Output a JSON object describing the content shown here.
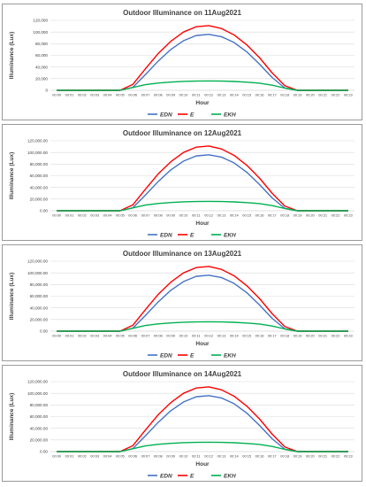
{
  "colors": {
    "EDN": "#4472c4",
    "E": "#ff0000",
    "EKH": "#00b050",
    "grid": "#d9d9d9",
    "axis": "#bfbfbf"
  },
  "x_tick_labels": [
    "00:00",
    "00:01",
    "00:02",
    "00:03",
    "00:04",
    "00:05",
    "00:06",
    "00:07",
    "00:08",
    "00:09",
    "00:10",
    "00:11",
    "00:12",
    "00:13",
    "00:14",
    "00:15",
    "00:16",
    "00:17",
    "00:18",
    "00:19",
    "00:20",
    "00:21",
    "00:22",
    "00:23"
  ],
  "chart_data": [
    {
      "type": "line",
      "title": "Outdoor Illuminance on 11Aug2021",
      "xlabel": "Hour",
      "ylabel": "Illuminance (Lux)",
      "ylim": [
        0,
        120000
      ],
      "y_ticks": [
        "0",
        "20,000",
        "40,000",
        "60,000",
        "80,000",
        "100,000",
        "120,000"
      ],
      "grid": true,
      "legend": "bottom",
      "categories": [
        "00:00",
        "00:01",
        "00:02",
        "00:03",
        "00:04",
        "00:05",
        "00:06",
        "00:07",
        "00:08",
        "00:09",
        "00:10",
        "00:11",
        "00:12",
        "00:13",
        "00:14",
        "00:15",
        "00:16",
        "00:17",
        "00:18",
        "00:19",
        "00:20",
        "00:21",
        "00:22",
        "00:23"
      ],
      "series": [
        {
          "name": "EDN",
          "values": [
            0,
            0,
            0,
            0,
            0,
            0,
            5000,
            27000,
            50000,
            70000,
            85000,
            94000,
            96000,
            92000,
            82000,
            66000,
            45000,
            22000,
            4000,
            0,
            0,
            0,
            0,
            0
          ]
        },
        {
          "name": "E",
          "values": [
            0,
            0,
            0,
            0,
            0,
            0,
            10000,
            37000,
            63000,
            84000,
            100000,
            109000,
            111000,
            106000,
            95000,
            78000,
            56000,
            30000,
            8000,
            0,
            0,
            0,
            0,
            0
          ]
        },
        {
          "name": "EKH",
          "values": [
            0,
            0,
            0,
            0,
            0,
            0,
            4800,
            9700,
            12500,
            14200,
            15300,
            15800,
            16000,
            15800,
            15200,
            14000,
            12200,
            8800,
            3800,
            0,
            0,
            0,
            0,
            0
          ]
        }
      ]
    },
    {
      "type": "line",
      "title": "Outdoor Illuminance on 12Aug2021",
      "xlabel": "Hour",
      "ylabel": "Illuminance (Lux)",
      "ylim": [
        0,
        120000
      ],
      "y_ticks": [
        "0.00",
        "20,000.00",
        "40,000.00",
        "60,000.00",
        "80,000.00",
        "100,000.00",
        "120,000.00"
      ],
      "grid": true,
      "legend": "bottom",
      "categories": [
        "00:00",
        "00:01",
        "00:02",
        "00:03",
        "00:04",
        "00:05",
        "00:06",
        "00:07",
        "00:08",
        "00:09",
        "00:10",
        "00:11",
        "00:12",
        "00:13",
        "00:14",
        "00:15",
        "00:16",
        "00:17",
        "00:18",
        "00:19",
        "00:20",
        "00:21",
        "00:22",
        "00:23"
      ],
      "series": [
        {
          "name": "EDN",
          "values": [
            0,
            0,
            0,
            0,
            0,
            0,
            5000,
            27000,
            50000,
            70000,
            85000,
            94000,
            96000,
            92000,
            82000,
            66000,
            45000,
            22000,
            4000,
            0,
            0,
            0,
            0,
            0
          ]
        },
        {
          "name": "E",
          "values": [
            0,
            0,
            0,
            0,
            0,
            0,
            10000,
            37000,
            63000,
            84000,
            100000,
            109000,
            111000,
            106000,
            95000,
            78000,
            56000,
            30000,
            8000,
            0,
            0,
            0,
            0,
            0
          ]
        },
        {
          "name": "EKH",
          "values": [
            0,
            0,
            0,
            0,
            0,
            0,
            4800,
            9700,
            12500,
            14200,
            15300,
            15800,
            16000,
            15800,
            15200,
            14000,
            12200,
            8800,
            3800,
            0,
            0,
            0,
            0,
            0
          ]
        }
      ]
    },
    {
      "type": "line",
      "title": "Outdoor Illuminance on 13Aug2021",
      "xlabel": "Hour",
      "ylabel": "Illuminance (Lux)",
      "ylim": [
        0,
        120000
      ],
      "y_ticks": [
        "0.00",
        "20,000.00",
        "40,000.00",
        "60,000.00",
        "80,000.00",
        "100,000.00",
        "120,000.00"
      ],
      "grid": true,
      "legend": "bottom",
      "categories": [
        "00:00",
        "00:01",
        "00:02",
        "00:03",
        "00:04",
        "00:05",
        "00:06",
        "00:07",
        "00:08",
        "00:09",
        "00:10",
        "00:11",
        "00:12",
        "00:13",
        "00:14",
        "00:15",
        "00:16",
        "00:17",
        "00:18",
        "00:19",
        "00:20",
        "00:21",
        "00:22",
        "00:23"
      ],
      "series": [
        {
          "name": "EDN",
          "values": [
            0,
            0,
            0,
            0,
            0,
            0,
            5000,
            27000,
            50000,
            70000,
            85000,
            94000,
            96000,
            92000,
            82000,
            66000,
            45000,
            22000,
            4000,
            0,
            0,
            0,
            0,
            0
          ]
        },
        {
          "name": "E",
          "values": [
            0,
            0,
            0,
            0,
            0,
            0,
            10000,
            37000,
            63000,
            84000,
            100000,
            109000,
            111000,
            106000,
            95000,
            78000,
            56000,
            30000,
            8000,
            0,
            0,
            0,
            0,
            0
          ]
        },
        {
          "name": "EKH",
          "values": [
            0,
            0,
            0,
            0,
            0,
            0,
            4800,
            9700,
            12500,
            14200,
            15300,
            15800,
            16000,
            15800,
            15200,
            14000,
            12200,
            8800,
            3800,
            0,
            0,
            0,
            0,
            0
          ]
        }
      ]
    },
    {
      "type": "line",
      "title": "Outdoor Illuminance on 14Aug2021",
      "xlabel": "Hour",
      "ylabel": "Illuminance (Lux)",
      "ylim": [
        0,
        120000
      ],
      "y_ticks": [
        "0.00",
        "20,000.00",
        "40,000.00",
        "60,000.00",
        "80,000.00",
        "100,000.00",
        "120,000.00"
      ],
      "grid": true,
      "legend": "bottom",
      "categories": [
        "00:00",
        "00:01",
        "00:02",
        "00:03",
        "00:04",
        "00:05",
        "00:06",
        "00:07",
        "00:08",
        "00:09",
        "00:10",
        "00:11",
        "00:12",
        "00:13",
        "00:14",
        "00:15",
        "00:16",
        "00:17",
        "00:18",
        "00:19",
        "00:20",
        "00:21",
        "00:22",
        "00:23"
      ],
      "series": [
        {
          "name": "EDN",
          "values": [
            0,
            0,
            0,
            0,
            0,
            0,
            5000,
            27000,
            50000,
            70000,
            85000,
            94000,
            96000,
            92000,
            82000,
            66000,
            45000,
            22000,
            4000,
            0,
            0,
            0,
            0,
            0
          ]
        },
        {
          "name": "E",
          "values": [
            0,
            0,
            0,
            0,
            0,
            0,
            10000,
            37000,
            63000,
            84000,
            100000,
            109000,
            111000,
            106000,
            95000,
            78000,
            56000,
            30000,
            8000,
            0,
            0,
            0,
            0,
            0
          ]
        },
        {
          "name": "EKH",
          "values": [
            0,
            0,
            0,
            0,
            0,
            0,
            4800,
            9700,
            12500,
            14200,
            15300,
            15800,
            16000,
            15800,
            15200,
            14000,
            12200,
            8800,
            3800,
            0,
            0,
            0,
            0,
            0
          ]
        }
      ]
    }
  ]
}
